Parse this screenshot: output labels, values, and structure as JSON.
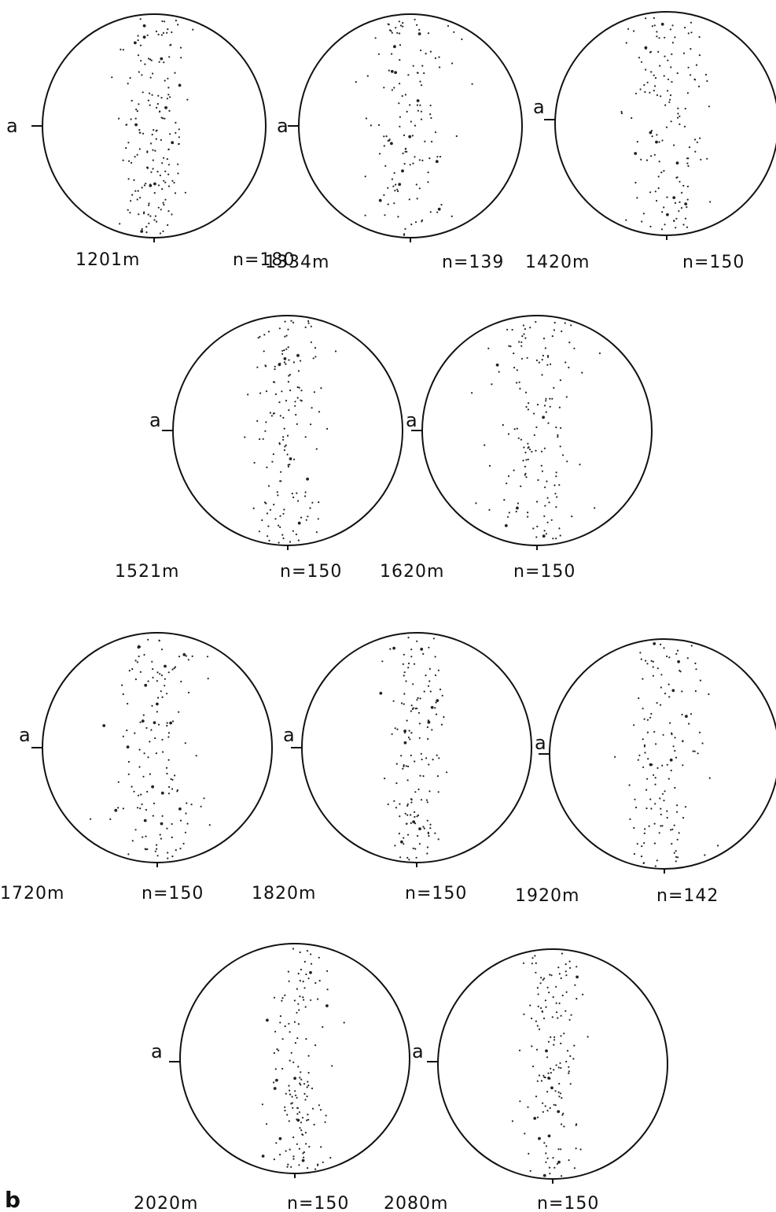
{
  "figure": {
    "panel_label": "b",
    "axis_marker": "a",
    "ink_color": "#111111",
    "nets": [
      {
        "depth": "1201m",
        "count": "n=180",
        "spread": 0.15,
        "seed": 11
      },
      {
        "depth": "1334m",
        "count": "n=139",
        "spread": 0.18,
        "seed": 23
      },
      {
        "depth": "1420m",
        "count": "n=150",
        "spread": 0.17,
        "seed": 37
      },
      {
        "depth": "1521m",
        "count": "n=150",
        "spread": 0.16,
        "seed": 41
      },
      {
        "depth": "1620m",
        "count": "n=150",
        "spread": 0.2,
        "seed": 53
      },
      {
        "depth": "1720m",
        "count": "n=150",
        "spread": 0.2,
        "seed": 67
      },
      {
        "depth": "1820m",
        "count": "n=150",
        "spread": 0.14,
        "seed": 71
      },
      {
        "depth": "1920m",
        "count": "n=142",
        "spread": 0.16,
        "seed": 83
      },
      {
        "depth": "2020m",
        "count": "n=150",
        "spread": 0.14,
        "seed": 97
      },
      {
        "depth": "2080m",
        "count": "n=150",
        "spread": 0.13,
        "seed": 101
      }
    ]
  }
}
